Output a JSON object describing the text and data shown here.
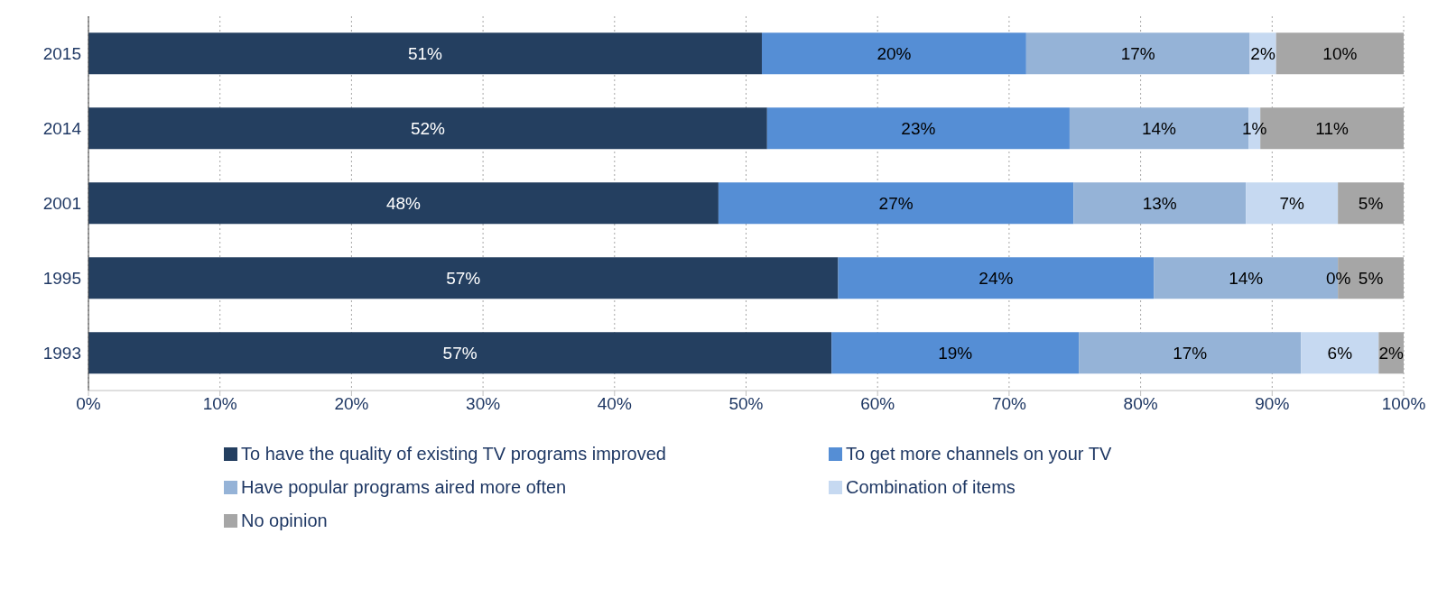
{
  "chart_data": {
    "type": "bar",
    "orientation": "horizontal",
    "stacked": true,
    "categories": [
      "2015",
      "2014",
      "2001",
      "1995",
      "1993"
    ],
    "series": [
      {
        "name": "To have the quality of existing TV programs improved",
        "color": "#243f60",
        "values": [
          51.2,
          51.6,
          47.9,
          57.0,
          56.5
        ],
        "value_labels": [
          "51%",
          "52%",
          "48%",
          "57%",
          "57%"
        ]
      },
      {
        "name": "To get more channels on your TV",
        "color": "#558ed5",
        "values": [
          20.1,
          23.0,
          27.0,
          24.0,
          18.8
        ],
        "value_labels": [
          "20%",
          "23%",
          "27%",
          "24%",
          "19%"
        ]
      },
      {
        "name": "Have popular programs aired more often",
        "color": "#95b3d7",
        "values": [
          17.0,
          13.6,
          13.1,
          14.0,
          16.9
        ],
        "value_labels": [
          "17%",
          "14%",
          "13%",
          "14%",
          "17%"
        ]
      },
      {
        "name": "Combination of items",
        "color": "#c6d9f1",
        "values": [
          2.0,
          0.9,
          7.0,
          0,
          5.9
        ],
        "value_labels": [
          "2%",
          "1%",
          "7%",
          "0%",
          "6%"
        ]
      },
      {
        "name": "No opinion",
        "color": "#a6a6a6",
        "values": [
          9.7,
          10.9,
          5.0,
          5.0,
          1.9
        ],
        "value_labels": [
          "10%",
          "11%",
          "5%",
          "5%",
          "2%"
        ]
      }
    ],
    "xlim": [
      0,
      100
    ],
    "xticks": [
      {
        "value": 0,
        "label": "0%"
      },
      {
        "value": 10,
        "label": "10%"
      },
      {
        "value": 20,
        "label": "20%"
      },
      {
        "value": 30,
        "label": "30%"
      },
      {
        "value": 40,
        "label": "40%"
      },
      {
        "value": 50,
        "label": "50%"
      },
      {
        "value": 60,
        "label": "60%"
      },
      {
        "value": 70,
        "label": "70%"
      },
      {
        "value": 80,
        "label": "80%"
      },
      {
        "value": 90,
        "label": "90%"
      },
      {
        "value": 100,
        "label": "100%"
      }
    ],
    "grid": "x",
    "legend": "bottom"
  }
}
